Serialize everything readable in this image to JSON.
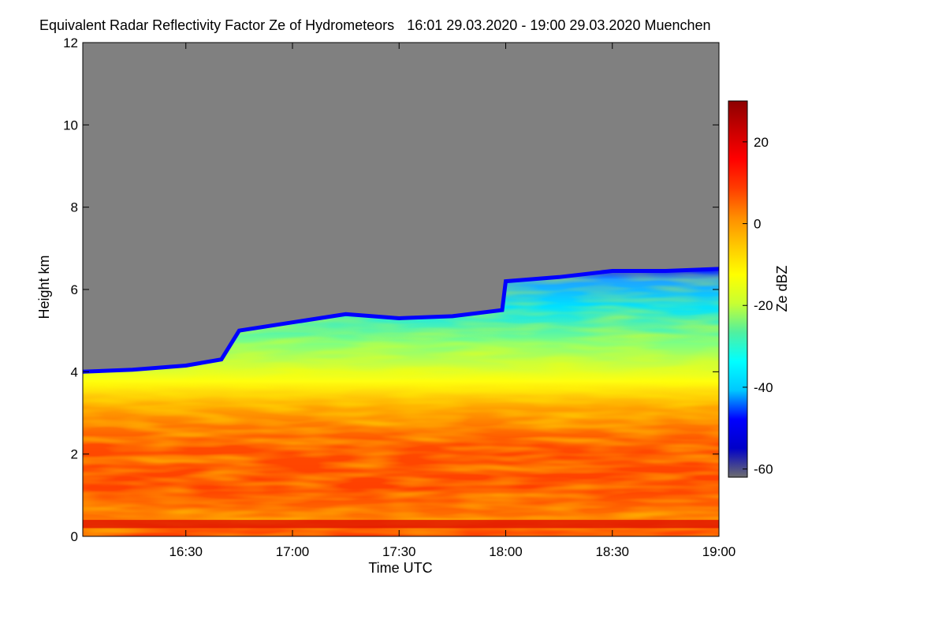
{
  "chart_data": {
    "type": "heatmap",
    "title": "Equivalent Radar Reflectivity Factor Ze of Hydrometeors",
    "time_range": "16:01 29.03.2020 - 19:00 29.03.2020",
    "location": "Muenchen",
    "xlabel": "Time UTC",
    "ylabel": "Height km",
    "x_range": [
      "16:01",
      "19:00"
    ],
    "x_ticks": [
      "16:30",
      "17:00",
      "17:30",
      "18:00",
      "18:30",
      "19:00"
    ],
    "y_range": [
      0,
      12
    ],
    "y_ticks": [
      0,
      2,
      4,
      6,
      8,
      10,
      12
    ],
    "colorbar": {
      "label": "Ze dBZ",
      "range": [
        -62,
        30
      ],
      "ticks": [
        20,
        0,
        -20,
        -40,
        -60
      ],
      "colors": [
        "#6e6e6e",
        "#0000c8",
        "#0000ff",
        "#00c8ff",
        "#00ffff",
        "#50f0a0",
        "#c8ff32",
        "#ffff00",
        "#ffc800",
        "#ff8c00",
        "#ff3c00",
        "#ff0000",
        "#c80000",
        "#8c0000"
      ]
    },
    "background_color": "#808080",
    "cloud_top_km": [
      [
        "16:01",
        4.0
      ],
      [
        "16:15",
        4.05
      ],
      [
        "16:30",
        4.15
      ],
      [
        "16:40",
        4.3
      ],
      [
        "16:45",
        5.0
      ],
      [
        "17:00",
        5.2
      ],
      [
        "17:15",
        5.4
      ],
      [
        "17:30",
        5.3
      ],
      [
        "17:45",
        5.35
      ],
      [
        "17:59",
        5.5
      ],
      [
        "18:00",
        6.2
      ],
      [
        "18:15",
        6.3
      ],
      [
        "18:30",
        6.45
      ],
      [
        "18:45",
        6.45
      ],
      [
        "19:00",
        6.5
      ]
    ]
  }
}
